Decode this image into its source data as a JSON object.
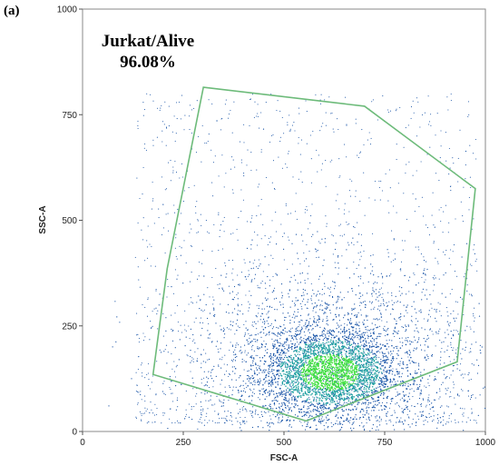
{
  "panel_label": "(a)",
  "chart_data": {
    "type": "scatter",
    "subtype": "flow-cytometry density dot plot",
    "title": "",
    "xlabel": "FSC-A",
    "ylabel": "SSC-A",
    "xlim": [
      0,
      1000
    ],
    "ylim": [
      0,
      1000
    ],
    "xticks": [
      0,
      250,
      500,
      750,
      1000
    ],
    "yticks": [
      0,
      250,
      500,
      750,
      1000
    ],
    "grid": false,
    "gate": {
      "name": "Jurkat/Alive",
      "percent": "96.08%",
      "color": "#6dbb7a",
      "vertices": [
        [
          300,
          815
        ],
        [
          700,
          770
        ],
        [
          975,
          575
        ],
        [
          930,
          165
        ],
        [
          555,
          25
        ],
        [
          175,
          135
        ],
        [
          210,
          385
        ]
      ]
    },
    "density": {
      "dense_center": [
        615,
        140
      ],
      "dense_spread": [
        80,
        48
      ],
      "colors": {
        "low": "#1a55a8",
        "mid": "#1ea0a0",
        "high": "#3ee03e"
      }
    }
  }
}
